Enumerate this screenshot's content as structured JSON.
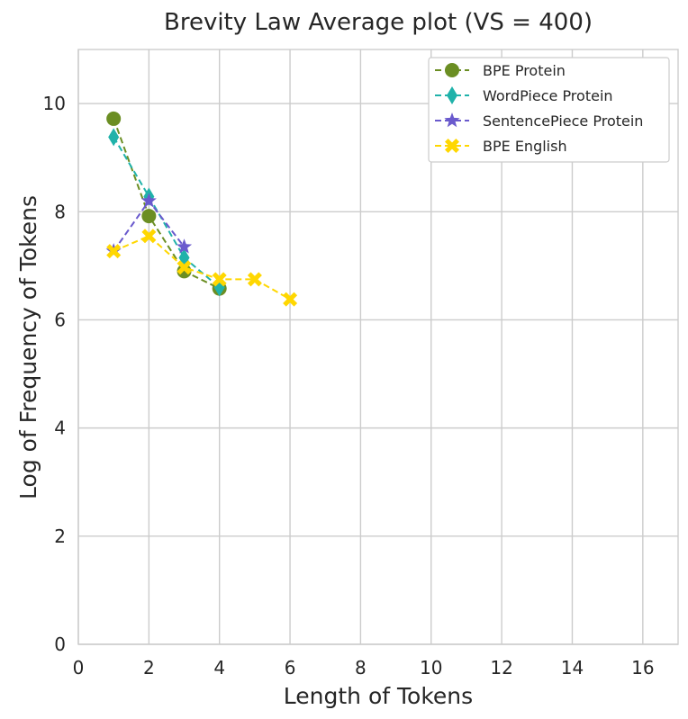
{
  "chart_data": {
    "type": "line",
    "title": "Brevity Law Average plot (VS = 400)",
    "xlabel": "Length of Tokens",
    "ylabel": "Log of Frequency of Tokens",
    "xlim": [
      0,
      17
    ],
    "ylim": [
      0,
      11
    ],
    "xticks": [
      0,
      2,
      4,
      6,
      8,
      10,
      12,
      14,
      16
    ],
    "yticks": [
      0,
      2,
      4,
      6,
      8,
      10
    ],
    "grid": true,
    "legend_position": "top-right",
    "series": [
      {
        "name": "BPE Protein",
        "x": [
          1,
          2,
          3,
          4
        ],
        "y": [
          9.72,
          7.92,
          6.9,
          6.58
        ],
        "color": "#6b8e23",
        "marker": "circle",
        "linestyle": "dashed"
      },
      {
        "name": "WordPiece Protein",
        "x": [
          1,
          2,
          3,
          4
        ],
        "y": [
          9.38,
          8.28,
          7.15,
          6.6
        ],
        "color": "#20b2aa",
        "marker": "diamond",
        "linestyle": "dashed"
      },
      {
        "name": "SentencePiece Protein",
        "x": [
          1,
          2,
          3
        ],
        "y": [
          7.27,
          8.2,
          7.35
        ],
        "color": "#6a5acd",
        "marker": "star",
        "linestyle": "dashed"
      },
      {
        "name": "BPE English",
        "x": [
          1,
          2,
          3,
          4,
          5,
          6
        ],
        "y": [
          7.27,
          7.55,
          6.97,
          6.75,
          6.75,
          6.38
        ],
        "color": "#ffd700",
        "marker": "x",
        "linestyle": "dashed"
      }
    ]
  }
}
